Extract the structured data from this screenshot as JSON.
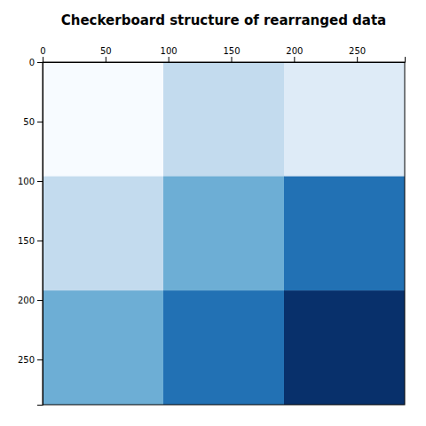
{
  "chart_data": {
    "type": "heatmap",
    "title": "Checkerboard structure of rearranged data",
    "matrix": [
      [
        0,
        2,
        1
      ],
      [
        2,
        4,
        6
      ],
      [
        4,
        6,
        8
      ]
    ],
    "color": "Blues",
    "color_range": [
      0,
      8
    ],
    "xlim": [
      0,
      288
    ],
    "ylim": [
      288,
      0
    ],
    "xticks": [
      0,
      50,
      100,
      150,
      200,
      250
    ],
    "yticks": [
      0,
      50,
      100,
      150,
      200,
      250
    ]
  }
}
